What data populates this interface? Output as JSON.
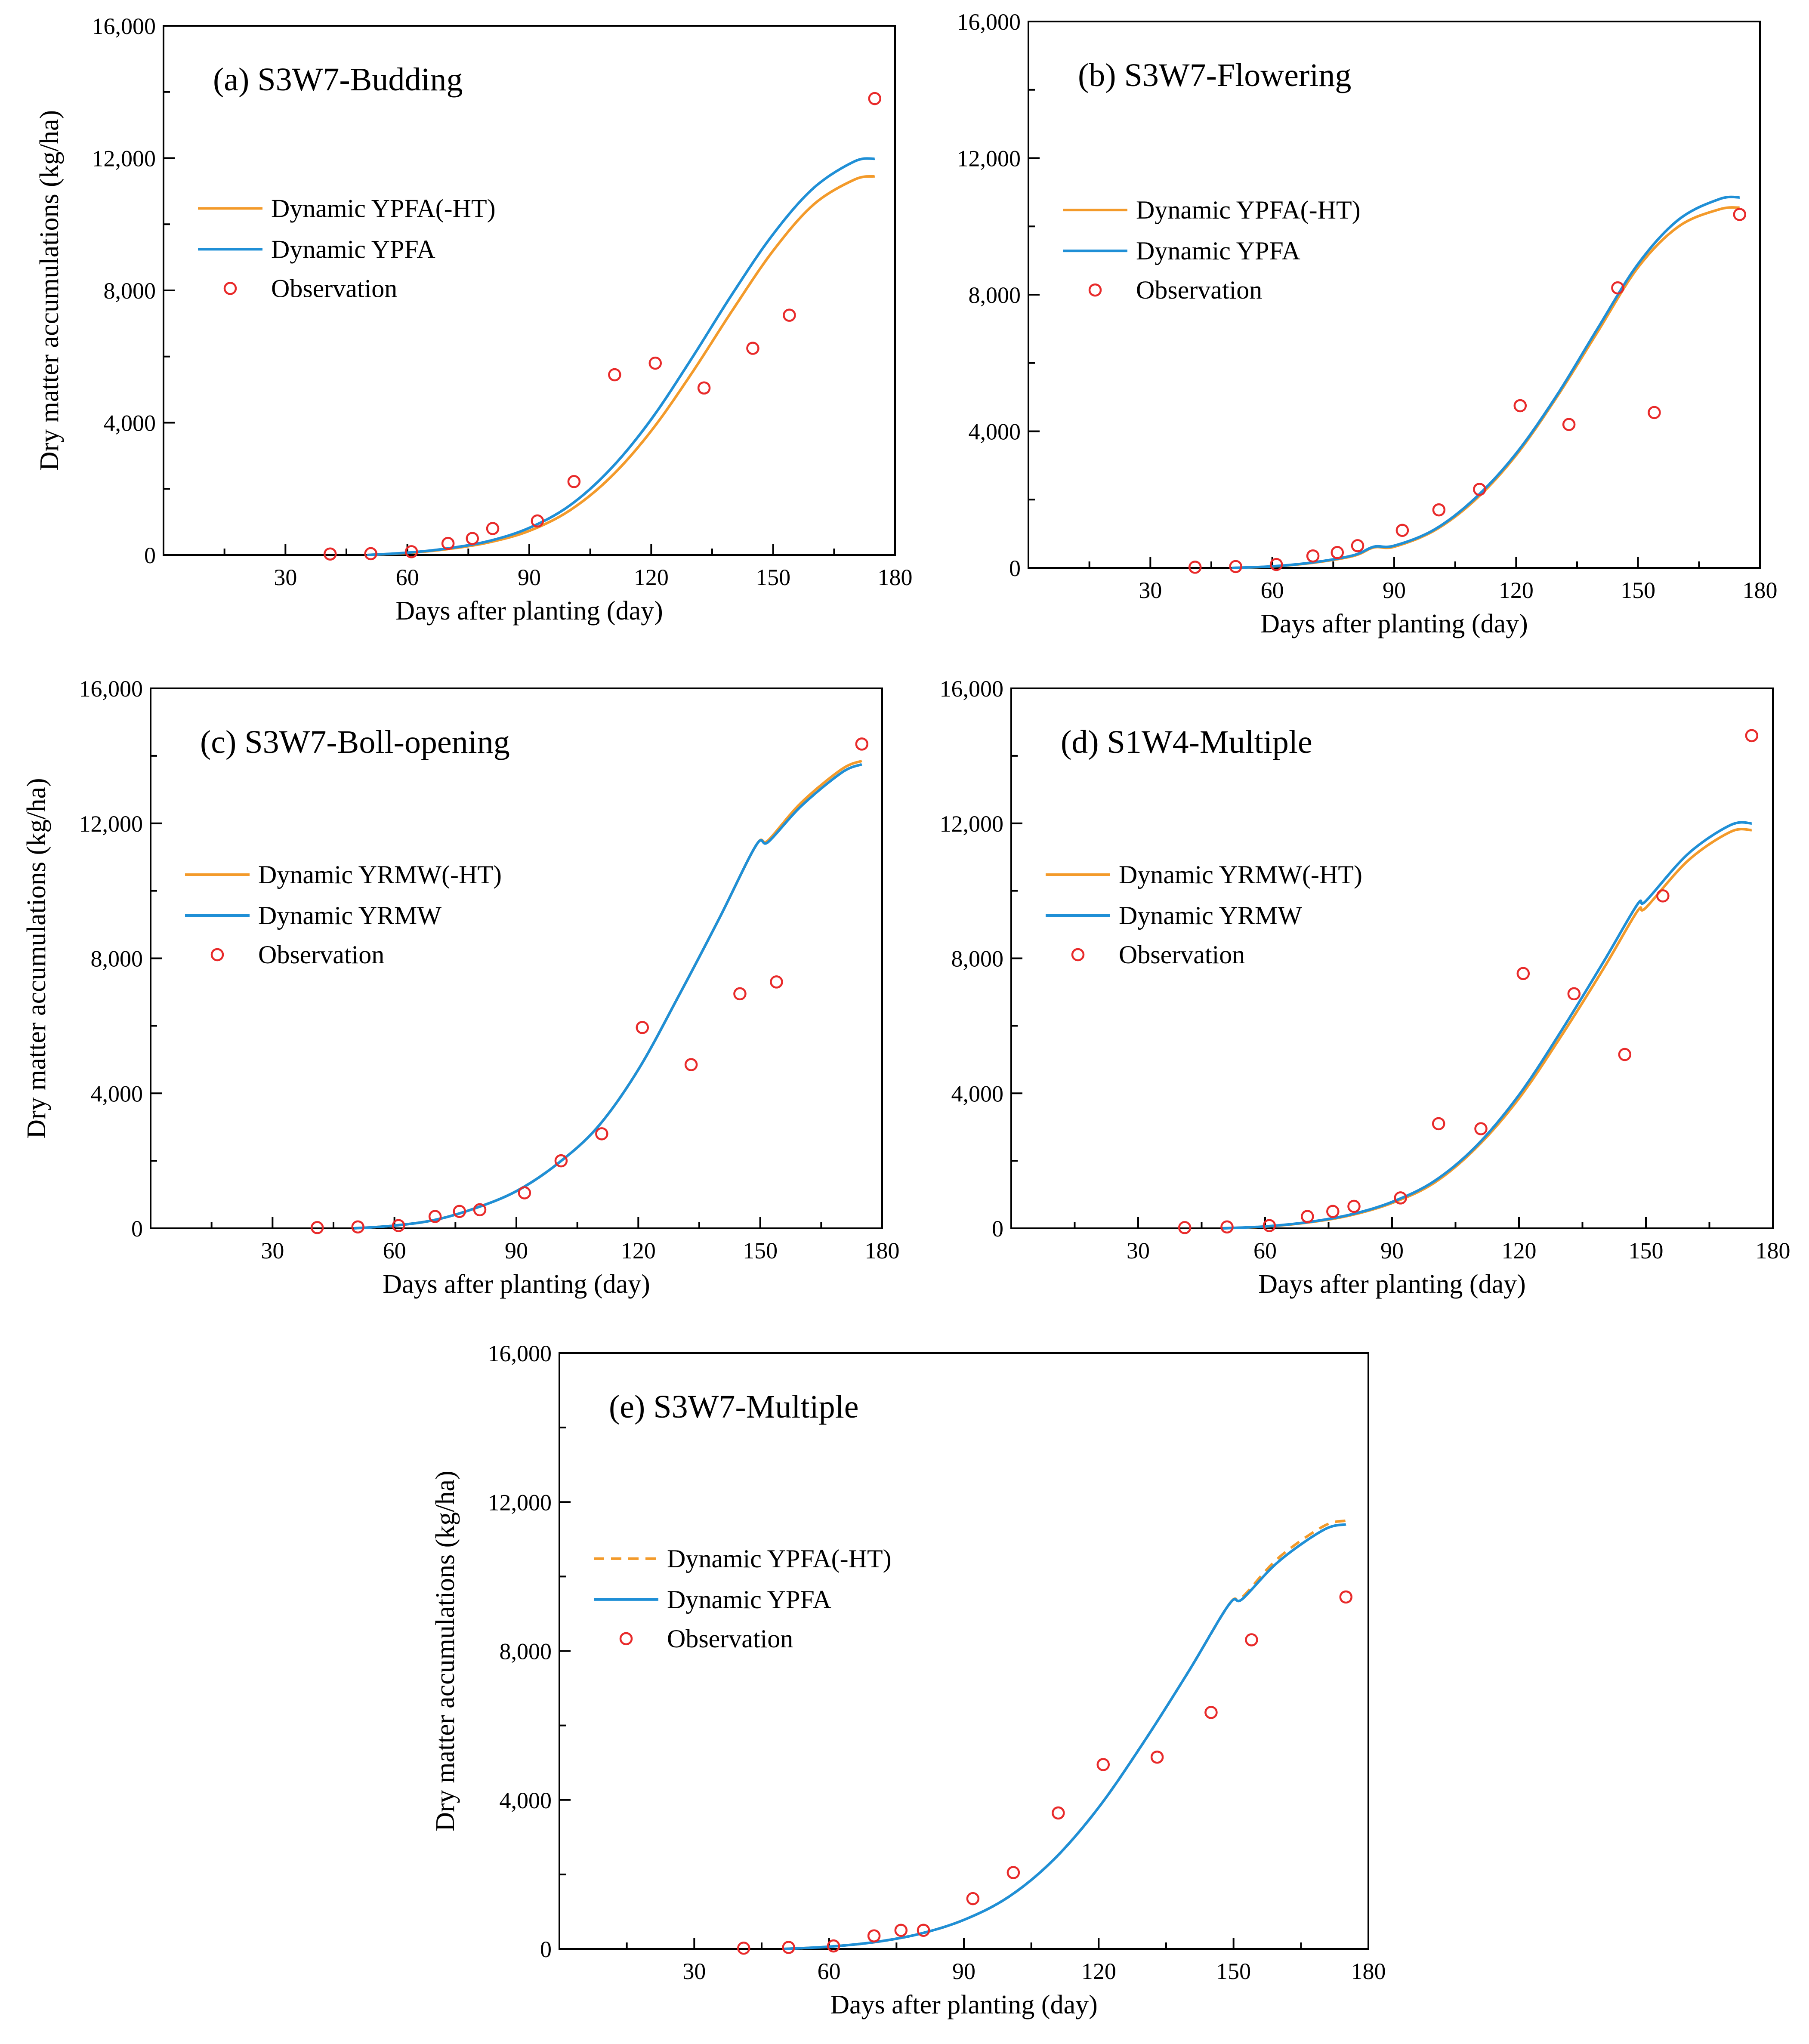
{
  "figure": {
    "colors": {
      "ht_line": "#f39a2a",
      "full_line": "#1f8fd6",
      "observation": "#e82a2a",
      "axis": "#000000"
    }
  },
  "chart_data": [
    {
      "id": "a",
      "type": "line",
      "title": "(a) S3W7-Budding",
      "xlabel": "Days after planting (day)",
      "ylabel": "Dry matter accumulations (kg/ha)",
      "xlim": [
        0,
        180
      ],
      "ylim": [
        0,
        16000
      ],
      "xticks": [
        30,
        60,
        90,
        120,
        150,
        180
      ],
      "xtick_labels": [
        "30",
        "60",
        "90",
        "120",
        "150",
        "180"
      ],
      "yticks": [
        0,
        4000,
        8000,
        12000,
        16000
      ],
      "ytick_labels": [
        "0",
        "4,000",
        "8,000",
        "12,000",
        "16,000"
      ],
      "legend": [
        "Dynamic YPFA(-HT)",
        "Dynamic YPFA",
        "Observation"
      ],
      "series": [
        {
          "name": "Dynamic YPFA(-HT)",
          "style": "solid",
          "color_key": "ht_line",
          "x": [
            50,
            60,
            70,
            80,
            90,
            100,
            110,
            120,
            130,
            140,
            150,
            160,
            170,
            175
          ],
          "y": [
            0,
            60,
            180,
            380,
            730,
            1350,
            2350,
            3750,
            5500,
            7400,
            9200,
            10600,
            11350,
            11450
          ]
        },
        {
          "name": "Dynamic YPFA",
          "style": "solid",
          "color_key": "full_line",
          "x": [
            50,
            60,
            70,
            80,
            90,
            100,
            110,
            120,
            130,
            140,
            150,
            160,
            170,
            175
          ],
          "y": [
            0,
            70,
            200,
            420,
            820,
            1500,
            2600,
            4100,
            5950,
            7900,
            9700,
            11100,
            11900,
            11980
          ]
        }
      ],
      "observations": {
        "name": "Observation",
        "x": [
          41,
          51,
          61,
          70,
          76,
          81,
          92,
          101,
          111,
          121,
          133,
          145,
          154,
          175
        ],
        "y": [
          30,
          40,
          100,
          350,
          500,
          800,
          1030,
          2220,
          5450,
          5800,
          5050,
          6250,
          7250,
          13800
        ]
      }
    },
    {
      "id": "b",
      "type": "line",
      "title": "(b) S3W7-Flowering",
      "xlabel": "Days after planting (day)",
      "ylabel": "",
      "xlim": [
        0,
        180
      ],
      "ylim": [
        0,
        16000
      ],
      "xticks": [
        30,
        60,
        90,
        120,
        150,
        180
      ],
      "xtick_labels": [
        "30",
        "60",
        "90",
        "120",
        "150",
        "180"
      ],
      "yticks": [
        0,
        4000,
        8000,
        12000,
        16000
      ],
      "ytick_labels": [
        "0",
        "4,000",
        "8,000",
        "12,000",
        "16,000"
      ],
      "legend": [
        "Dynamic YPFA(-HT)",
        "Dynamic YPFA",
        "Observation"
      ],
      "series": [
        {
          "name": "Dynamic YPFA(-HT)",
          "style": "solid",
          "color_key": "ht_line",
          "x": [
            50,
            60,
            70,
            80,
            85,
            90,
            100,
            110,
            120,
            130,
            140,
            150,
            160,
            170,
            175
          ],
          "y": [
            0,
            40,
            150,
            350,
            600,
            620,
            1100,
            2000,
            3300,
            5000,
            6900,
            8800,
            10000,
            10500,
            10550
          ]
        },
        {
          "name": "Dynamic YPFA",
          "style": "solid",
          "color_key": "full_line",
          "x": [
            50,
            60,
            70,
            80,
            85,
            90,
            100,
            110,
            120,
            130,
            140,
            150,
            160,
            170,
            175
          ],
          "y": [
            0,
            45,
            160,
            370,
            620,
            650,
            1130,
            2050,
            3350,
            5050,
            7000,
            8900,
            10200,
            10800,
            10850
          ]
        }
      ],
      "observations": {
        "name": "Observation",
        "x": [
          41,
          51,
          61,
          70,
          76,
          81,
          92,
          101,
          111,
          121,
          133,
          145,
          154,
          175
        ],
        "y": [
          20,
          40,
          100,
          350,
          450,
          650,
          1100,
          1700,
          2300,
          4750,
          4200,
          8200,
          4550,
          10350
        ]
      }
    },
    {
      "id": "c",
      "type": "line",
      "title": "(c) S3W7-Boll-opening",
      "xlabel": "Days after planting (day)",
      "ylabel": "Dry matter accumulations (kg/ha)",
      "xlim": [
        0,
        180
      ],
      "ylim": [
        0,
        16000
      ],
      "xticks": [
        30,
        60,
        90,
        120,
        150,
        180
      ],
      "xtick_labels": [
        "30",
        "60",
        "90",
        "120",
        "150",
        "180"
      ],
      "yticks": [
        0,
        4000,
        8000,
        12000,
        16000
      ],
      "ytick_labels": [
        "0",
        "4,000",
        "8,000",
        "12,000",
        "16,000"
      ],
      "legend": [
        "Dynamic YRMW(-HT)",
        "Dynamic YRMW",
        "Observation"
      ],
      "series": [
        {
          "name": "Dynamic YRMW(-HT)",
          "style": "solid",
          "color_key": "ht_line",
          "x": [
            50,
            60,
            70,
            80,
            90,
            100,
            110,
            120,
            130,
            140,
            149,
            152,
            160,
            170,
            175
          ],
          "y": [
            0,
            80,
            250,
            600,
            1100,
            1900,
            3000,
            4700,
            6900,
            9200,
            11350,
            11500,
            12600,
            13600,
            13850
          ]
        },
        {
          "name": "Dynamic YRMW",
          "style": "solid",
          "color_key": "full_line",
          "x": [
            50,
            60,
            70,
            80,
            90,
            100,
            110,
            120,
            130,
            140,
            149,
            152,
            160,
            170,
            175
          ],
          "y": [
            0,
            80,
            250,
            600,
            1100,
            1900,
            3000,
            4700,
            6900,
            9200,
            11350,
            11450,
            12500,
            13500,
            13750
          ]
        }
      ],
      "observations": {
        "name": "Observation",
        "x": [
          41,
          51,
          61,
          70,
          76,
          81,
          92,
          101,
          111,
          121,
          133,
          145,
          154,
          175
        ],
        "y": [
          20,
          40,
          80,
          350,
          500,
          550,
          1050,
          2000,
          2800,
          5950,
          4850,
          6950,
          7300,
          14350
        ]
      }
    },
    {
      "id": "d",
      "type": "line",
      "title": "(d) S1W4-Multiple",
      "xlabel": "Days after planting (day)",
      "ylabel": "",
      "xlim": [
        0,
        180
      ],
      "ylim": [
        0,
        16000
      ],
      "xticks": [
        30,
        60,
        90,
        120,
        150,
        180
      ],
      "xtick_labels": [
        "30",
        "60",
        "90",
        "120",
        "150",
        "180"
      ],
      "yticks": [
        0,
        4000,
        8000,
        12000,
        16000
      ],
      "ytick_labels": [
        "0",
        "4,000",
        "8,000",
        "12,000",
        "16,000"
      ],
      "legend": [
        "Dynamic YRMW(-HT)",
        "Dynamic YRMW",
        "Observation"
      ],
      "series": [
        {
          "name": "Dynamic YRMW(-HT)",
          "style": "solid",
          "color_key": "ht_line",
          "x": [
            50,
            60,
            70,
            80,
            90,
            100,
            110,
            120,
            130,
            140,
            148,
            150,
            160,
            170,
            175
          ],
          "y": [
            0,
            50,
            170,
            380,
            750,
            1350,
            2400,
            3850,
            5700,
            7700,
            9400,
            9500,
            10900,
            11750,
            11800
          ]
        },
        {
          "name": "Dynamic YRMW",
          "style": "solid",
          "color_key": "full_line",
          "x": [
            50,
            60,
            70,
            80,
            90,
            100,
            110,
            120,
            130,
            140,
            148,
            150,
            160,
            170,
            175
          ],
          "y": [
            0,
            55,
            180,
            400,
            780,
            1400,
            2450,
            3950,
            5850,
            7900,
            9600,
            9700,
            11100,
            11950,
            12000
          ]
        }
      ],
      "observations": {
        "name": "Observation",
        "x": [
          41,
          51,
          61,
          70,
          76,
          81,
          92,
          101,
          111,
          121,
          133,
          145,
          154,
          175
        ],
        "y": [
          20,
          40,
          80,
          350,
          500,
          650,
          900,
          3100,
          2950,
          7550,
          6950,
          5150,
          9850,
          14600
        ]
      }
    },
    {
      "id": "e",
      "type": "line",
      "title": "(e) S3W7-Multiple",
      "xlabel": "Days after planting (day)",
      "ylabel": "Dry matter accumulations (kg/ha)",
      "xlim": [
        0,
        180
      ],
      "ylim": [
        0,
        16000
      ],
      "xticks": [
        30,
        60,
        90,
        120,
        150,
        180
      ],
      "xtick_labels": [
        "30",
        "60",
        "90",
        "120",
        "150",
        "180"
      ],
      "yticks": [
        0,
        4000,
        8000,
        12000,
        16000
      ],
      "ytick_labels": [
        "0",
        "4,000",
        "8,000",
        "12,000",
        "16,000"
      ],
      "legend": [
        "Dynamic YPFA(-HT)",
        "Dynamic YPFA",
        "Observation"
      ],
      "series": [
        {
          "name": "Dynamic YPFA(-HT)",
          "style": "dashed",
          "color_key": "ht_line",
          "x": [
            50,
            60,
            70,
            80,
            90,
            100,
            110,
            120,
            130,
            140,
            149,
            152,
            160,
            170,
            175
          ],
          "y": [
            0,
            60,
            180,
            400,
            780,
            1400,
            2400,
            3800,
            5550,
            7450,
            9250,
            9450,
            10500,
            11350,
            11500
          ]
        },
        {
          "name": "Dynamic YPFA",
          "style": "solid",
          "color_key": "full_line",
          "x": [
            50,
            60,
            70,
            80,
            90,
            100,
            110,
            120,
            130,
            140,
            149,
            152,
            160,
            170,
            175
          ],
          "y": [
            0,
            60,
            180,
            400,
            780,
            1400,
            2400,
            3800,
            5550,
            7450,
            9250,
            9400,
            10400,
            11250,
            11400
          ]
        }
      ],
      "observations": {
        "name": "Observation",
        "x": [
          41,
          51,
          61,
          70,
          76,
          81,
          92,
          101,
          111,
          121,
          133,
          145,
          154,
          175
        ],
        "y": [
          20,
          40,
          80,
          350,
          500,
          500,
          1350,
          2050,
          3650,
          4950,
          5150,
          6350,
          8300,
          9450
        ]
      }
    }
  ]
}
